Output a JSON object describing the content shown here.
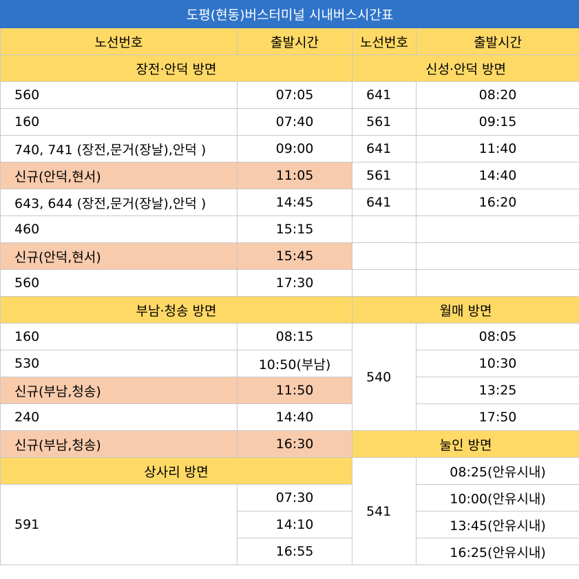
{
  "title": "도평(현동)버스터미널 시내버스시간표",
  "headers": {
    "route": "노선번호",
    "time": "출발시간"
  },
  "sections": {
    "jangjeon": "장전·안덕 방면",
    "sinseong": "신성·안덕 방면",
    "bunam": "부남·청송 방면",
    "wolmae": "월매 방면",
    "nurin": "눌인 방면",
    "sasari": "상사리 방면"
  },
  "jangjeon": [
    {
      "route": "560",
      "time": "07:05"
    },
    {
      "route": "160",
      "time": "07:40"
    },
    {
      "route": "740, 741 (장전,문거(장날),안덕 )",
      "time": "09:00"
    },
    {
      "route": "신규(안덕,현서)",
      "time": "11:05"
    },
    {
      "route": "643, 644 (장전,문거(장날),안덕 )",
      "time": "14:45"
    },
    {
      "route": "460",
      "time": "15:15"
    },
    {
      "route": "신규(안덕,현서)",
      "time": "15:45"
    },
    {
      "route": "560",
      "time": "17:30"
    }
  ],
  "sinseong": [
    {
      "route": "641",
      "time": "08:20"
    },
    {
      "route": "561",
      "time": "09:15"
    },
    {
      "route": "641",
      "time": "11:40"
    },
    {
      "route": "561",
      "time": "14:40"
    },
    {
      "route": "641",
      "time": "16:20"
    }
  ],
  "bunam": [
    {
      "route": "160",
      "time": "08:15"
    },
    {
      "route": "530",
      "time": "10:50(부남)"
    },
    {
      "route": "신규(부남,청송)",
      "time": "11:50"
    },
    {
      "route": "240",
      "time": "14:40"
    },
    {
      "route": "신규(부남,청송)",
      "time": "16:30"
    }
  ],
  "wolmae": {
    "route": "540",
    "times": [
      "08:05",
      "10:30",
      "13:25",
      "17:50"
    ]
  },
  "nurin": {
    "route": "541",
    "times": [
      "08:25(안유시내)",
      "10:00(안유시내)",
      "13:45(안유시내)",
      "16:25(안유시내)"
    ]
  },
  "sasari": {
    "route": "591",
    "times": [
      "07:30",
      "14:10",
      "16:55"
    ]
  },
  "colors": {
    "title_bg": "#2f74c9",
    "header_bg": "#ffd966",
    "highlight": "#f8cbad"
  }
}
